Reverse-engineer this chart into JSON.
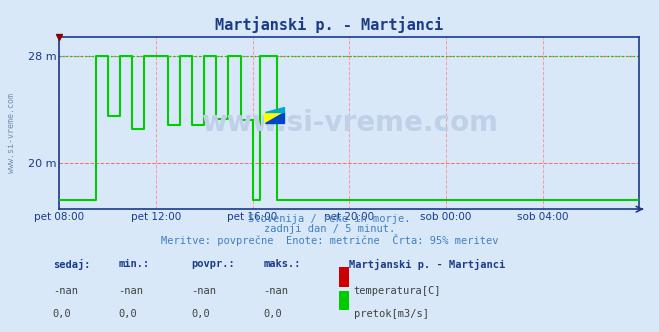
{
  "title": "Martjanski p. - Martjanci",
  "bg_color": "#d8e8f8",
  "plot_bg_color": "#d8e8f8",
  "title_color": "#1a3a8a",
  "axis_color": "#1a3a8a",
  "grid_color_h": "#ff6666",
  "grid_color_v": "#ff9999",
  "watermark": "www.si-vreme.com",
  "watermark_color": "#c0d0e8",
  "subtitle1": "Slovenija / reke in morje.",
  "subtitle2": "zadnji dan / 5 minut.",
  "subtitle3": "Meritve: povprečne  Enote: metrične  Črta: 95% meritev",
  "subtitle_color": "#4080c0",
  "ylabel_left": "m",
  "yticks": [
    20,
    28
  ],
  "ylim": [
    16.5,
    29.5
  ],
  "xlim_hours": [
    0,
    24
  ],
  "xtick_labels": [
    "pet 08:00",
    "pet 12:00",
    "pet 16:00",
    "pet 20:00",
    "sob 00:00",
    "sob 04:00"
  ],
  "xtick_positions": [
    0,
    4,
    8,
    12,
    16,
    20
  ],
  "line_color_flow": "#00cc00",
  "line_color_temp": "#cc0000",
  "line_width": 1.5,
  "max_line_color": "#00cc00",
  "max_line_style": "dotted",
  "max_line_value": 28,
  "flow_data_x": [
    0.0,
    1.5,
    1.5,
    2.0,
    2.0,
    2.5,
    2.5,
    3.0,
    3.0,
    3.5,
    3.5,
    4.5,
    4.5,
    5.0,
    5.0,
    5.5,
    5.5,
    6.0,
    6.0,
    6.5,
    6.5,
    7.0,
    7.0,
    7.5,
    7.5,
    8.0,
    8.0,
    8.3,
    8.3,
    9.0,
    9.0,
    12.0,
    12.0,
    24.0
  ],
  "flow_data_y": [
    17.2,
    17.2,
    28.0,
    28.0,
    23.5,
    23.5,
    28.0,
    28.0,
    22.5,
    22.5,
    28.0,
    28.0,
    22.8,
    22.8,
    28.0,
    28.0,
    22.8,
    22.8,
    28.0,
    28.0,
    23.3,
    23.3,
    28.0,
    28.0,
    23.2,
    23.2,
    17.2,
    17.2,
    28.0,
    28.0,
    17.2,
    17.2,
    17.2,
    17.2
  ],
  "legend_items": [
    {
      "label": "Martjanski p. - Martjanci",
      "color": null,
      "bold": true
    },
    {
      "label": "temperatura[C]",
      "color": "#cc0000"
    },
    {
      "label": "pretok[m3/s]",
      "color": "#00cc00"
    }
  ],
  "table_headers": [
    "sedaj:",
    "min.:",
    "povpr.:",
    "maks.:"
  ],
  "table_row1": [
    "-nan",
    "-nan",
    "-nan",
    "-nan"
  ],
  "table_row2": [
    "0,0",
    "0,0",
    "0,0",
    "0,0"
  ],
  "table_color": "#1a3a8a",
  "table_value_color": "#404040",
  "sidebar_text": "www.si-vreme.com",
  "sidebar_color": "#7090b0"
}
